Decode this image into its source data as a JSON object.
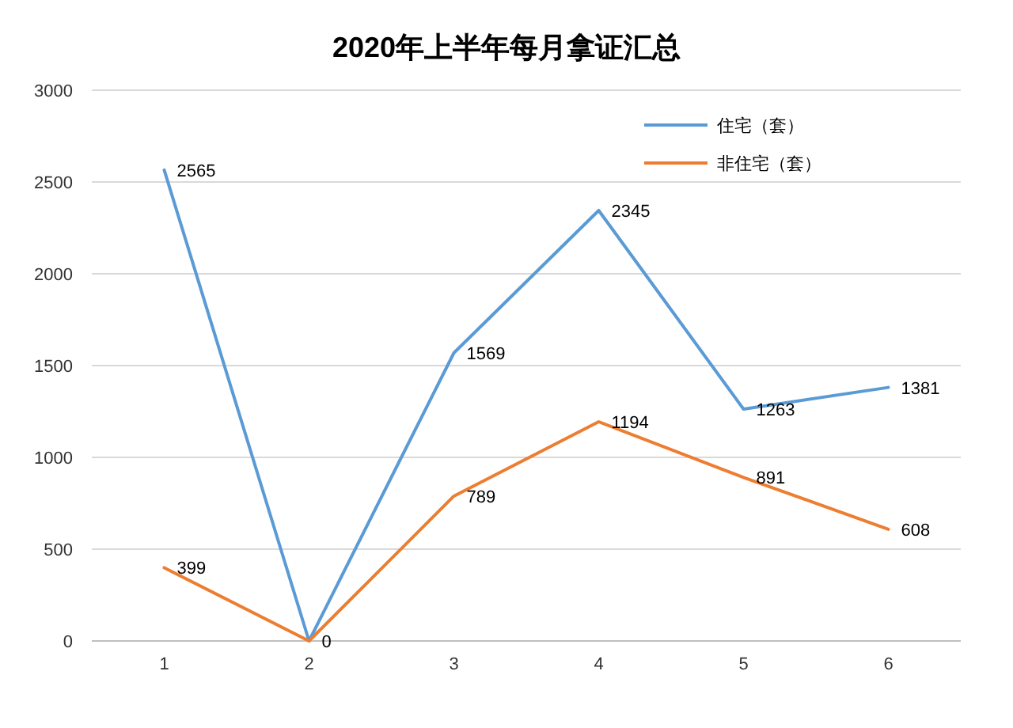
{
  "chart_data": {
    "type": "line",
    "title": "2020年上半年每月拿证汇总",
    "categories": [
      "1",
      "2",
      "3",
      "4",
      "5",
      "6"
    ],
    "series": [
      {
        "name": "住宅（套）",
        "color": "#5b9bd5",
        "values": [
          2565,
          0,
          1569,
          2345,
          1263,
          1381
        ],
        "value_labels": [
          "2565",
          "0",
          "1569",
          "2345",
          "1263",
          "1381"
        ]
      },
      {
        "name": "非住宅（套）",
        "color": "#ed7d31",
        "values": [
          399,
          0,
          789,
          1194,
          891,
          608
        ],
        "value_labels": [
          "399",
          null,
          "789",
          "1194",
          "891",
          "608"
        ]
      }
    ],
    "ylim": [
      0,
      3000
    ],
    "yticks": [
      0,
      500,
      1000,
      1500,
      2000,
      2500,
      3000
    ],
    "grid": "y",
    "legend": "top right"
  }
}
